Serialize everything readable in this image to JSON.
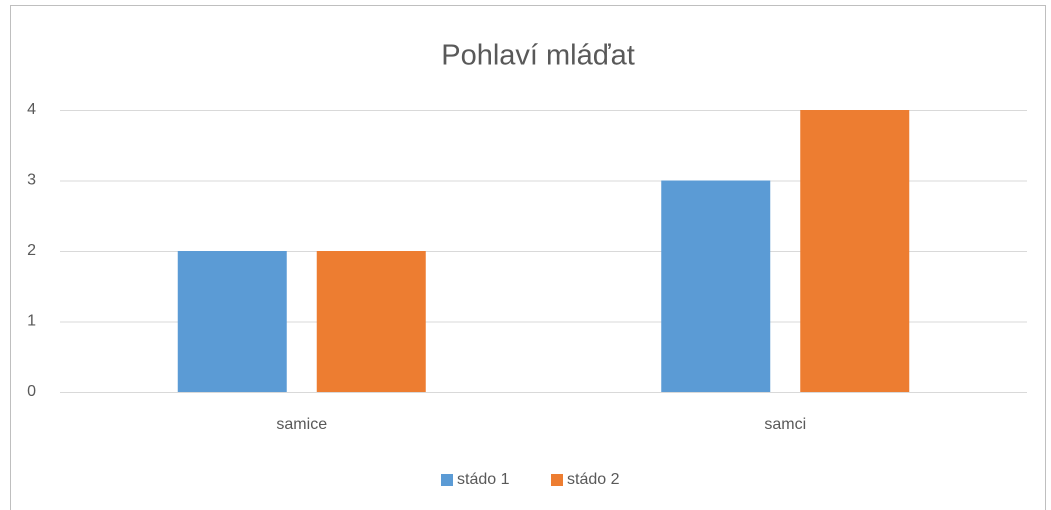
{
  "chart_data": {
    "type": "bar",
    "title": "Pohlaví mláďat",
    "categories": [
      "samice",
      "samci"
    ],
    "series": [
      {
        "name": "stádo 1",
        "color": "#5b9bd5",
        "values": [
          2,
          3
        ]
      },
      {
        "name": "stádo 2",
        "color": "#ed7d31",
        "values": [
          2,
          4
        ]
      }
    ],
    "ylim": [
      0,
      4
    ],
    "yticks": [
      0,
      1,
      2,
      3,
      4
    ],
    "grid": true,
    "legend": "bottom"
  }
}
